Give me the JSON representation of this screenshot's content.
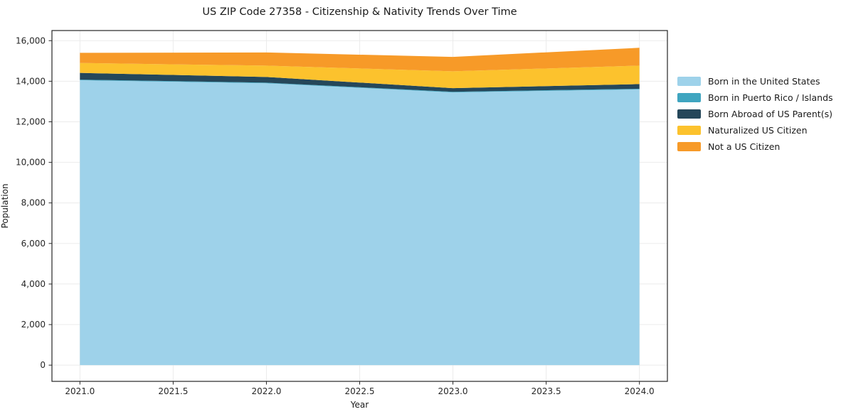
{
  "chart_data": {
    "type": "area",
    "stacked": true,
    "title": "US ZIP Code 27358 - Citizenship & Nativity Trends Over Time",
    "xlabel": "Year",
    "ylabel": "Population",
    "x": [
      2021,
      2022,
      2023,
      2024
    ],
    "series": [
      {
        "name": "Born in the United States",
        "key": "born-in-the-united-states",
        "color": "#9ed2ea",
        "values": [
          14050,
          13900,
          13450,
          13600
        ]
      },
      {
        "name": "Born in Puerto Rico / Islands",
        "key": "born-in-puerto-rico-islands",
        "color": "#3fa5c0",
        "values": [
          30,
          30,
          30,
          30
        ]
      },
      {
        "name": "Born Abroad of US Parent(s)",
        "key": "born-abroad-of-us-parents",
        "color": "#25475a",
        "values": [
          330,
          280,
          180,
          230
        ]
      },
      {
        "name": "Naturalized US Citizen",
        "key": "naturalized-us-citizen",
        "color": "#fcc22d",
        "values": [
          490,
          560,
          830,
          910
        ]
      },
      {
        "name": "Not a US Citizen",
        "key": "not-a-us-citizen",
        "color": "#f79a28",
        "values": [
          500,
          650,
          710,
          880
        ]
      }
    ],
    "xlim": [
      2020.85,
      2024.15
    ],
    "ylim": [
      -800,
      16500
    ],
    "xticks": {
      "values": [
        2021.0,
        2021.5,
        2022.0,
        2022.5,
        2023.0,
        2023.5,
        2024.0
      ],
      "labels": [
        "2021.0",
        "2021.5",
        "2022.0",
        "2022.5",
        "2023.0",
        "2023.5",
        "2024.0"
      ]
    },
    "yticks": {
      "values": [
        0,
        2000,
        4000,
        6000,
        8000,
        10000,
        12000,
        14000,
        16000
      ],
      "labels": [
        "0",
        "2,000",
        "4,000",
        "6,000",
        "8,000",
        "10,000",
        "12,000",
        "14,000",
        "16,000"
      ]
    },
    "grid": true,
    "grid_color": "#ebebeb",
    "spine_color": "#262626",
    "legend_position": "right-outside"
  }
}
